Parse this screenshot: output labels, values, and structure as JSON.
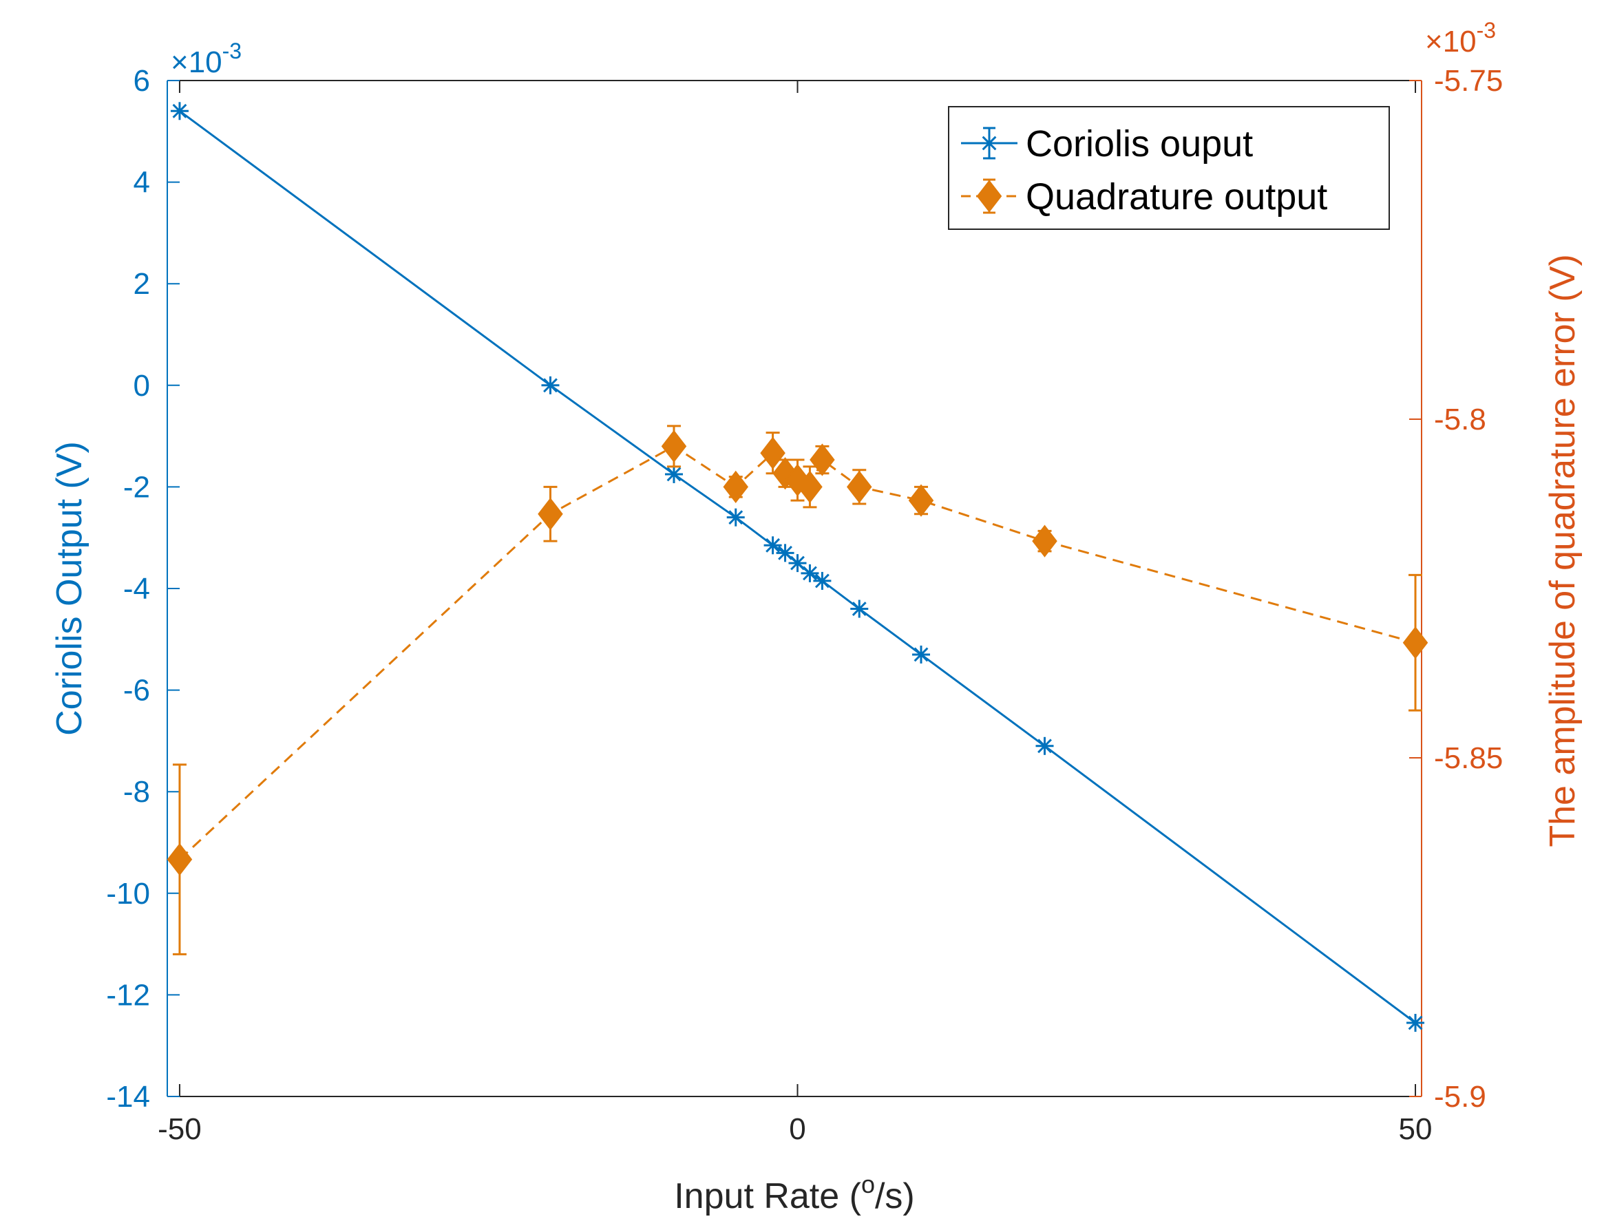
{
  "chart_data": {
    "type": "line",
    "xlabel": "Input Rate (",
    "xlabel_sup": "o",
    "xlabel_tail": "/s)",
    "ylabel_left": "Coriolis Output (V)",
    "ylabel_right": "The amplitude of quadrature error (V)",
    "xlim": [
      -51,
      50.5
    ],
    "ylim_left": [
      -0.014,
      0.006
    ],
    "ylim_right": [
      -0.0059,
      -0.00575
    ],
    "x_ticks": [
      -50,
      0,
      50
    ],
    "x_tick_labels": [
      "-50",
      "0",
      "50"
    ],
    "y_left_ticks": [
      6,
      4,
      2,
      0,
      -2,
      -4,
      -6,
      -8,
      -10,
      -12,
      -14
    ],
    "y_left_tick_labels": [
      "6",
      "4",
      "2",
      "0",
      "-2",
      "-4",
      "-6",
      "-8",
      "-10",
      "-12",
      "-14"
    ],
    "y_left_multiplier": "×10",
    "y_left_multiplier_exp": "-3",
    "y_right_ticks": [
      -5.75,
      -5.8,
      -5.85,
      -5.9
    ],
    "y_right_tick_labels": [
      "-5.75",
      "-5.8",
      "-5.85",
      "-5.9"
    ],
    "y_right_multiplier": "×10",
    "y_right_multiplier_exp": "-3",
    "grid": false,
    "legend_position": "top-right",
    "colors": {
      "left_axis": "#0072bd",
      "right_axis": "#d95319",
      "series1": "#0072bd",
      "series2": "#e07b0b"
    },
    "series": [
      {
        "name": "Coriolis ouput",
        "axis": "left",
        "marker": "asterisk",
        "line": "solid",
        "x": [
          -50,
          -20,
          -10,
          -5,
          -2,
          -1,
          0,
          1,
          2,
          5,
          10,
          20,
          50
        ],
        "y": [
          0.0054,
          0.0,
          -0.00175,
          -0.0026,
          -0.00315,
          -0.0033,
          -0.0035,
          -0.0037,
          -0.00385,
          -0.0044,
          -0.0053,
          -0.0071,
          -0.01255
        ]
      },
      {
        "name": "Quadrature output",
        "axis": "right",
        "marker": "diamond",
        "line": "dashed",
        "x": [
          -50,
          -20,
          -10,
          -5,
          -2,
          -1,
          0,
          1,
          2,
          5,
          10,
          20,
          50
        ],
        "y": [
          -0.005865,
          -0.005814,
          -0.005804,
          -0.00581,
          -0.005805,
          -0.005808,
          -0.005809,
          -0.00581,
          -0.005806,
          -0.00581,
          -0.005812,
          -0.005818,
          -0.005833
        ],
        "err": [
          1.4e-05,
          4e-06,
          3e-06,
          1.5e-06,
          3e-06,
          2e-06,
          3e-06,
          3e-06,
          2e-06,
          2.5e-06,
          2e-06,
          1.5e-06,
          1e-05
        ]
      }
    ]
  }
}
